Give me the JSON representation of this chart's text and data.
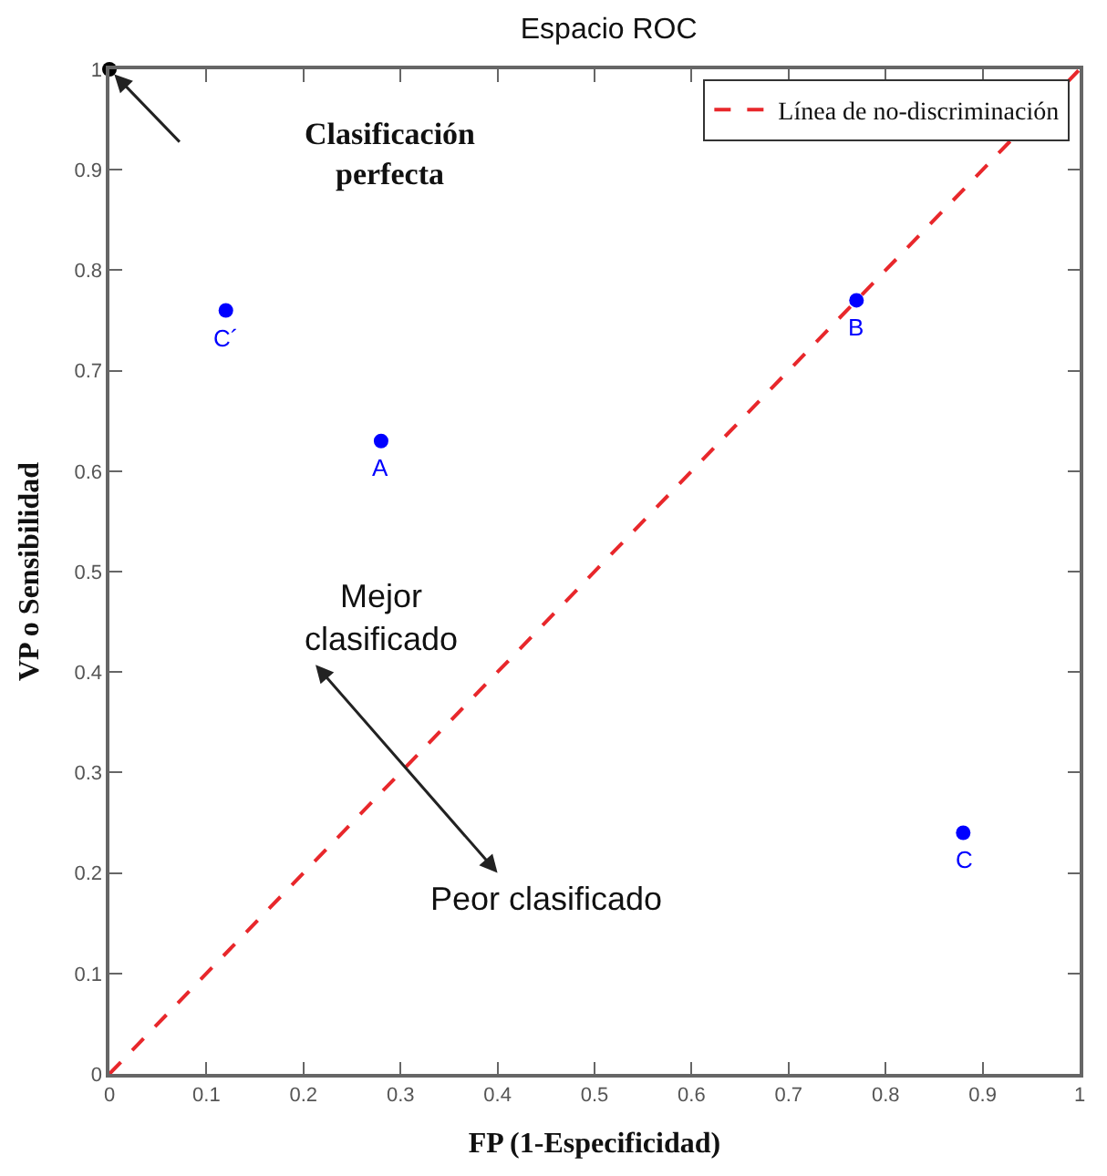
{
  "chart_data": {
    "type": "scatter",
    "title": "Espacio ROC",
    "xlabel": "FP (1-Especificidad)",
    "ylabel": "VP o Sensibilidad",
    "series": [
      {
        "color": "#000000",
        "x": [
          0
        ],
        "values": [
          1
        ]
      },
      {
        "color": "#0000ff",
        "x": [
          0.12,
          0.28,
          0.77,
          0.88
        ],
        "values": [
          0.76,
          0.63,
          0.77,
          0.24
        ]
      },
      {
        "type": "line",
        "name": "Línea de no-discriminación",
        "color": "#e8272b",
        "line_style": "dashed",
        "marker": "none",
        "x": [
          0,
          1
        ],
        "values": [
          0,
          1
        ]
      }
    ],
    "marker": "circle",
    "xlim": [
      0,
      1
    ],
    "ylim": [
      0,
      1
    ],
    "xticks": [
      0,
      0.1,
      0.2,
      0.3,
      0.4,
      0.5,
      0.6,
      0.7,
      0.8,
      0.9,
      1
    ],
    "yticks": [
      0,
      0.1,
      0.2,
      0.3,
      0.4,
      0.5,
      0.6,
      0.7,
      0.8,
      0.9,
      1
    ],
    "legend": "top right",
    "annotations": [
      {
        "text": "C´",
        "x": 0.12,
        "y": 0.76
      },
      {
        "text": "A",
        "x": 0.28,
        "y": 0.63
      },
      {
        "text": "B",
        "x": 0.77,
        "y": 0.77
      },
      {
        "text": "C",
        "x": 0.88,
        "y": 0.24
      },
      "Clasificación\nperfecta",
      "Mejor\nclasificado",
      "Peor clasificado"
    ]
  }
}
